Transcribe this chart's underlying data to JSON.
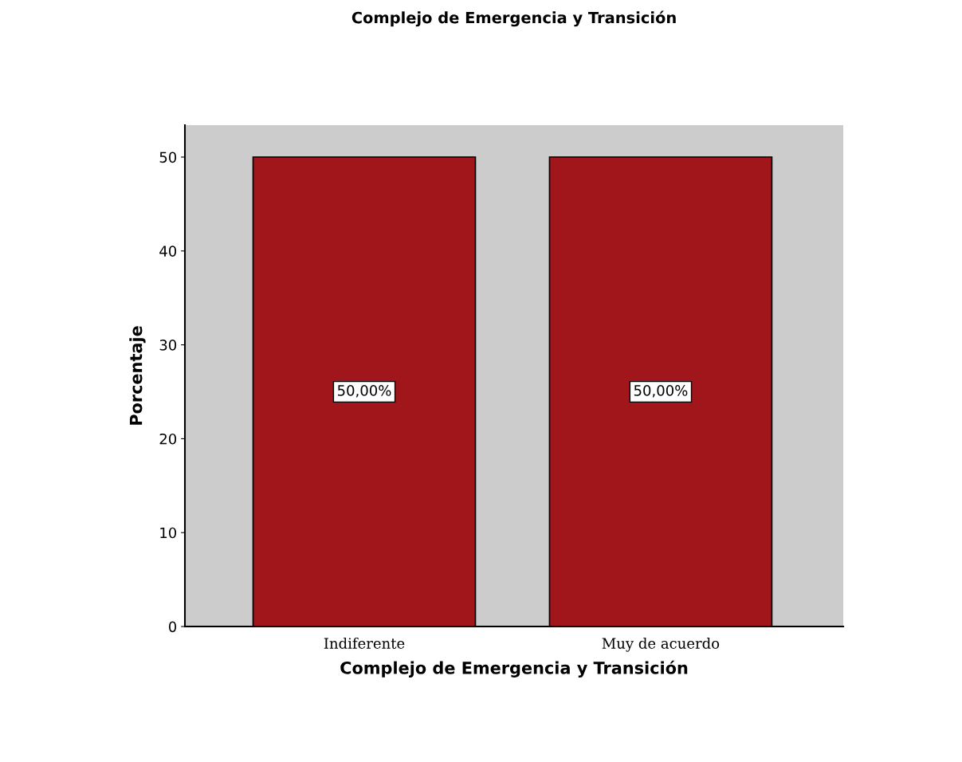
{
  "chart_data": {
    "type": "bar",
    "title": "Complejo de Emergencia y Transición",
    "xlabel": "Complejo de Emergencia y Transición",
    "ylabel": "Porcentaje",
    "categories": [
      "Indiferente",
      "Muy de acuerdo"
    ],
    "values": [
      50,
      50
    ],
    "value_labels": [
      "50,00%",
      "50,00%"
    ],
    "color": "#a0161a",
    "ylim": [
      0,
      53.4
    ],
    "yticks": [
      0,
      10,
      20,
      30,
      40,
      50
    ],
    "grid": false,
    "legend": false
  }
}
